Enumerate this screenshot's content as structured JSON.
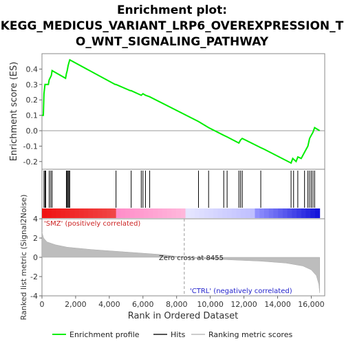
{
  "title_line1": "Enrichment plot:",
  "title_line2": "KEGG_MEDICUS_VARIANT_LRP6_OVEREXPRESSION_T",
  "title_line3": "O_WNT_SIGNALING_PATHWAY",
  "colors": {
    "enrichment": "#00ee00",
    "hits": "#000000",
    "metric_fill": "#bdbdbd",
    "pos_text": "#cc2222",
    "neg_text": "#2222cc"
  },
  "chart_data": [
    {
      "type": "line",
      "ylabel": "Enrichment score (ES)",
      "ylim": [
        -0.25,
        0.5
      ],
      "yticks": [
        "-0.2",
        "-0.1",
        "0.0",
        "0.1",
        "0.2",
        "0.3",
        "0.4"
      ],
      "ytick_values": [
        -0.2,
        -0.1,
        0.0,
        0.1,
        0.2,
        0.3,
        0.4
      ],
      "xlim": [
        0,
        16800
      ],
      "series": [
        {
          "name": "Enrichment profile",
          "points": [
            [
              0,
              0.1
            ],
            [
              80,
              0.1
            ],
            [
              120,
              0.24
            ],
            [
              180,
              0.3
            ],
            [
              380,
              0.3
            ],
            [
              430,
              0.33
            ],
            [
              520,
              0.35
            ],
            [
              560,
              0.36
            ],
            [
              600,
              0.39
            ],
            [
              1400,
              0.34
            ],
            [
              1450,
              0.37
            ],
            [
              1500,
              0.39
            ],
            [
              1550,
              0.42
            ],
            [
              1600,
              0.44
            ],
            [
              1650,
              0.46
            ],
            [
              4350,
              0.3
            ],
            [
              4400,
              0.3
            ],
            [
              5250,
              0.26
            ],
            [
              5300,
              0.26
            ],
            [
              5900,
              0.23
            ],
            [
              6000,
              0.24
            ],
            [
              6150,
              0.23
            ],
            [
              6400,
              0.22
            ],
            [
              9300,
              0.06
            ],
            [
              9900,
              0.02
            ],
            [
              10800,
              -0.03
            ],
            [
              11000,
              -0.04
            ],
            [
              11700,
              -0.08
            ],
            [
              11800,
              -0.06
            ],
            [
              11900,
              -0.05
            ],
            [
              13000,
              -0.11
            ],
            [
              13200,
              -0.12
            ],
            [
              14800,
              -0.21
            ],
            [
              14900,
              -0.18
            ],
            [
              15100,
              -0.2
            ],
            [
              15200,
              -0.17
            ],
            [
              15400,
              -0.18
            ],
            [
              15600,
              -0.14
            ],
            [
              15800,
              -0.1
            ],
            [
              15900,
              -0.05
            ],
            [
              16000,
              -0.03
            ],
            [
              16100,
              -0.01
            ],
            [
              16200,
              0.02
            ],
            [
              16500,
              0.0
            ]
          ]
        }
      ],
      "hits": [
        120,
        180,
        220,
        430,
        520,
        600,
        1450,
        1500,
        1550,
        1600,
        1650,
        4400,
        5300,
        5900,
        6000,
        6150,
        6400,
        9300,
        9900,
        10800,
        11000,
        11700,
        11800,
        11900,
        13000,
        14800,
        14950,
        15200,
        15600,
        15800,
        15900,
        16000,
        16100,
        16200
      ]
    },
    {
      "type": "area",
      "ylabel": "Ranked list metric (Signal2Noise)",
      "ylim": [
        -4,
        4
      ],
      "yticks": [
        "-4",
        "-2",
        "0",
        "2",
        "4"
      ],
      "ytick_values": [
        -4,
        -2,
        0,
        2,
        4
      ],
      "xlabel": "Rank in Ordered Dataset",
      "xticks": [
        "0",
        "2,000",
        "4,000",
        "6,000",
        "8,000",
        "10,000",
        "12,000",
        "14,000",
        "16,000"
      ],
      "xtick_values": [
        0,
        2000,
        4000,
        6000,
        8000,
        10000,
        12000,
        14000,
        16000
      ],
      "xlim": [
        0,
        16800
      ],
      "metric_points": [
        [
          0,
          2.6
        ],
        [
          100,
          2.0
        ],
        [
          300,
          1.6
        ],
        [
          800,
          1.3
        ],
        [
          1500,
          1.05
        ],
        [
          3000,
          0.8
        ],
        [
          5000,
          0.55
        ],
        [
          7000,
          0.3
        ],
        [
          8455,
          0.0
        ],
        [
          9500,
          -0.15
        ],
        [
          11000,
          -0.25
        ],
        [
          13000,
          -0.4
        ],
        [
          14500,
          -0.6
        ],
        [
          15500,
          -0.9
        ],
        [
          16000,
          -1.3
        ],
        [
          16300,
          -1.9
        ],
        [
          16450,
          -2.8
        ],
        [
          16500,
          -3.7
        ]
      ],
      "zero_cross_label": "Zero cross at 8455",
      "zero_cross_value": 8455,
      "pos_label": "'SMZ' (positively correlated)",
      "neg_label": "'CTRL' (negatively correlated)"
    }
  ],
  "legend": [
    {
      "label": "Enrichment profile",
      "color": "#00ee00"
    },
    {
      "label": "Hits",
      "color": "#000000"
    },
    {
      "label": "Ranking metric scores",
      "color": "#bdbdbd"
    }
  ]
}
